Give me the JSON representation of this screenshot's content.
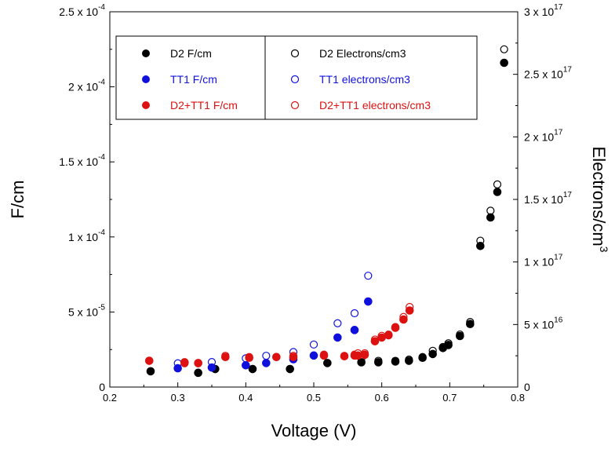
{
  "chart_data": {
    "type": "scatter",
    "xlabel": "Voltage (V)",
    "ylabel_left": "F/cm",
    "ylabel_right": "Electrons/cm",
    "ylabel_right_sup": "3",
    "xlim": [
      0.2,
      0.8
    ],
    "ylim_left": [
      0,
      0.00025
    ],
    "ylim_right": [
      0,
      3e+17
    ],
    "grid": false,
    "legend_position": "top-left",
    "x_ticks": [
      {
        "value": 0.2,
        "label": "0.2"
      },
      {
        "value": 0.3,
        "label": "0.3"
      },
      {
        "value": 0.4,
        "label": "0.4"
      },
      {
        "value": 0.5,
        "label": "0.5"
      },
      {
        "value": 0.6,
        "label": "0.6"
      },
      {
        "value": 0.7,
        "label": "0.7"
      },
      {
        "value": 0.8,
        "label": "0.8"
      }
    ],
    "y_left_ticks": [
      {
        "value": 0,
        "mant": "0",
        "exp": ""
      },
      {
        "value": 5e-05,
        "mant": "5 x 10",
        "exp": "-5"
      },
      {
        "value": 0.0001,
        "mant": "1 x 10",
        "exp": "-4"
      },
      {
        "value": 0.00015,
        "mant": "1.5 x 10",
        "exp": "-4"
      },
      {
        "value": 0.0002,
        "mant": "2 x 10",
        "exp": "-4"
      },
      {
        "value": 0.00025,
        "mant": "2.5 x 10",
        "exp": "-4"
      }
    ],
    "y_right_ticks": [
      {
        "value": 0,
        "mant": "0",
        "exp": ""
      },
      {
        "value": 5e+16,
        "mant": "5 x 10",
        "exp": "16"
      },
      {
        "value": 1e+17,
        "mant": "1 x 10",
        "exp": "17"
      },
      {
        "value": 1.5e+17,
        "mant": "1.5 x 10",
        "exp": "17"
      },
      {
        "value": 2e+17,
        "mant": "2 x 10",
        "exp": "17"
      },
      {
        "value": 2.5e+17,
        "mant": "2.5 x 10",
        "exp": "17"
      },
      {
        "value": 3e+17,
        "mant": "3 x 10",
        "exp": "17"
      }
    ],
    "series": [
      {
        "name": "D2 F/cm",
        "axis": "left",
        "color": "#000000",
        "filled": true,
        "x": [
          0.26,
          0.33,
          0.355,
          0.41,
          0.465,
          0.52,
          0.57,
          0.595,
          0.62,
          0.64,
          0.66,
          0.675,
          0.69,
          0.698,
          0.715,
          0.73,
          0.745,
          0.76,
          0.77,
          0.78
        ],
        "y": [
          1.05e-05,
          9.5e-06,
          1.2e-05,
          1.2e-05,
          1.2e-05,
          1.6e-05,
          1.65e-05,
          1.65e-05,
          1.7e-05,
          1.75e-05,
          1.95e-05,
          2.2e-05,
          2.6e-05,
          2.8e-05,
          3.4e-05,
          4.2e-05,
          9.4e-05,
          0.000113,
          0.00013,
          0.000216
        ]
      },
      {
        "name": "TT1 F/cm",
        "axis": "left",
        "color": "#1010dd",
        "filled": true,
        "x": [
          0.3,
          0.35,
          0.4,
          0.43,
          0.47,
          0.5,
          0.535,
          0.56,
          0.58
        ],
        "y": [
          1.25e-05,
          1.3e-05,
          1.45e-05,
          1.6e-05,
          1.85e-05,
          2.1e-05,
          3.3e-05,
          3.8e-05,
          5.7e-05
        ]
      },
      {
        "name": "D2+TT1 F/cm",
        "axis": "left",
        "color": "#dd1111",
        "filled": true,
        "x": [
          0.258,
          0.31,
          0.33,
          0.37,
          0.405,
          0.445,
          0.47,
          0.515,
          0.545,
          0.56,
          0.565,
          0.575,
          0.59,
          0.6,
          0.61,
          0.62,
          0.632,
          0.641
        ],
        "y": [
          1.75e-05,
          1.65e-05,
          1.6e-05,
          2e-05,
          1.95e-05,
          2e-05,
          2e-05,
          2.1e-05,
          2.05e-05,
          2.1e-05,
          2.1e-05,
          2.15e-05,
          3.05e-05,
          3.3e-05,
          3.45e-05,
          3.95e-05,
          4.5e-05,
          5.1e-05
        ]
      },
      {
        "name": "D2 Electrons/cm3",
        "axis": "right",
        "color": "#000000",
        "filled": false,
        "x": [
          0.57,
          0.595,
          0.62,
          0.64,
          0.66,
          0.675,
          0.69,
          0.698,
          0.715,
          0.73,
          0.745,
          0.76,
          0.77,
          0.78
        ],
        "y": [
          2.3e+16,
          2.1e+16,
          2.1e+16,
          2.2e+16,
          2.4e+16,
          2.9e+16,
          3.2e+16,
          3.5e+16,
          4.2e+16,
          5.2e+16,
          1.17e+17,
          1.41e+17,
          1.62e+17,
          2.7e+17
        ]
      },
      {
        "name": "TT1 electrons/cm3",
        "axis": "right",
        "color": "#1010dd",
        "filled": false,
        "x": [
          0.3,
          0.35,
          0.4,
          0.43,
          0.47,
          0.5,
          0.535,
          0.56,
          0.58
        ],
        "y": [
          1.9e+16,
          2e+16,
          2.3e+16,
          2.5e+16,
          2.8e+16,
          3.4e+16,
          5.1e+16,
          5.9e+16,
          8.9e+16
        ]
      },
      {
        "name": "D2+TT1 electrons/cm3",
        "axis": "right",
        "color": "#dd1111",
        "filled": false,
        "x": [
          0.258,
          0.31,
          0.33,
          0.37,
          0.405,
          0.445,
          0.47,
          0.515,
          0.545,
          0.56,
          0.565,
          0.575,
          0.59,
          0.6,
          0.61,
          0.62,
          0.632,
          0.641
        ],
        "y": [
          2.1e+16,
          1.9e+16,
          1.9e+16,
          2.5e+16,
          2.4e+16,
          2.4e+16,
          2.5e+16,
          2.6e+16,
          2.5e+16,
          2.6e+16,
          2.7e+16,
          2.7e+16,
          3.8e+16,
          4.1e+16,
          4.2e+16,
          4.8e+16,
          5.6e+16,
          6.4e+16
        ]
      }
    ]
  }
}
